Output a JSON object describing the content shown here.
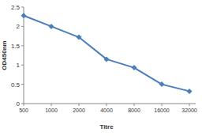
{
  "chart_data": {
    "type": "line",
    "x_label": "Titre",
    "y_label": "OD450nm",
    "categories": [
      "500",
      "1000",
      "2000",
      "4000",
      "8000",
      "16000",
      "32000"
    ],
    "values": [
      2.28,
      2.0,
      1.72,
      1.15,
      0.93,
      0.5,
      0.32
    ],
    "color": "#4a7ebb",
    "marker": "diamond",
    "ylim": [
      0,
      2.5
    ],
    "yticks": [
      0,
      0.5,
      1,
      1.5,
      2,
      2.5
    ],
    "grid": false
  }
}
